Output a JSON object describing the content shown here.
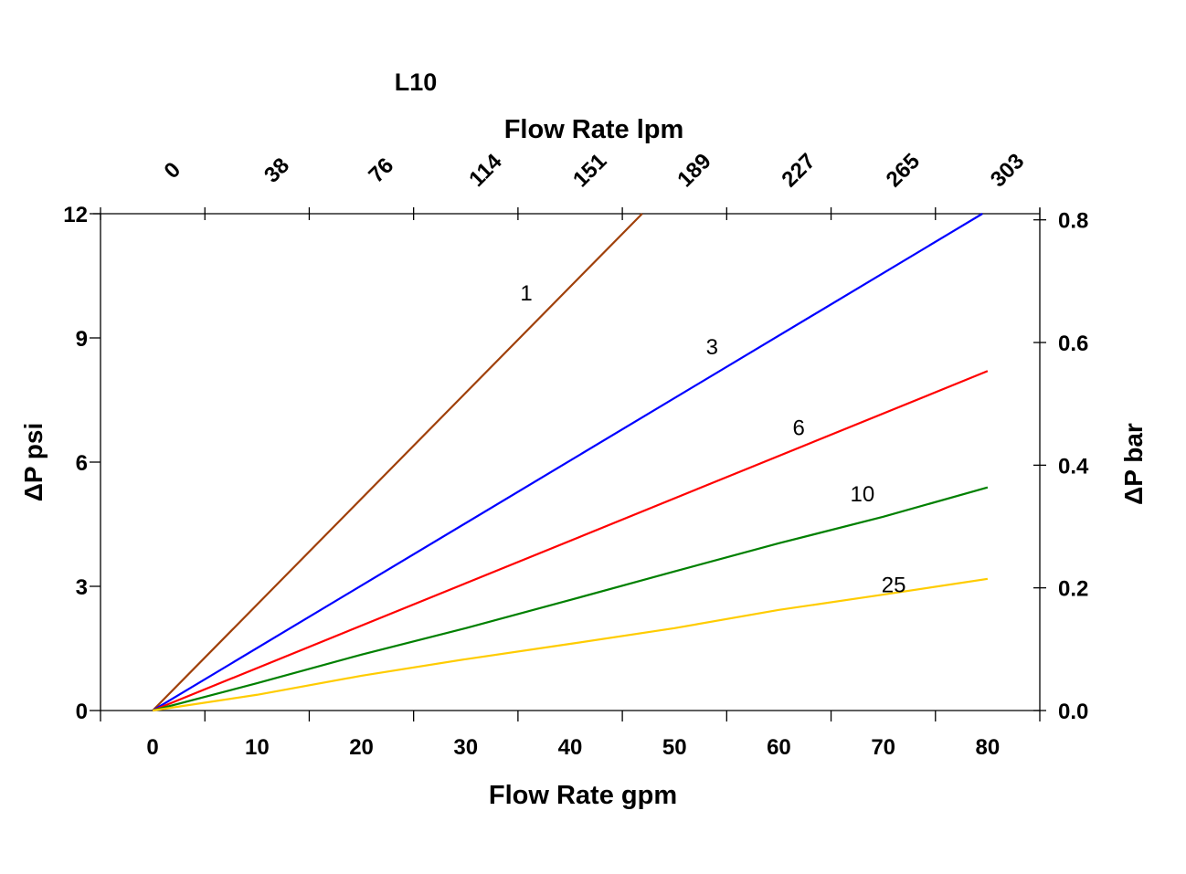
{
  "chart_data": {
    "type": "line",
    "title": "L10",
    "xlabel": "Flow Rate gpm",
    "x2label": "Flow Rate lpm",
    "ylabel": "ΔP psi",
    "y2label": "ΔP bar",
    "xlim": [
      -5,
      85
    ],
    "ylim": [
      0,
      12
    ],
    "y2lim": [
      0,
      0.81
    ],
    "grid": false,
    "x_ticks": [
      0,
      10,
      20,
      30,
      40,
      50,
      60,
      70,
      80
    ],
    "x2_tick_labels": [
      "0",
      "38",
      "76",
      "114",
      "151",
      "189",
      "227",
      "265",
      "303"
    ],
    "y_ticks": [
      0,
      3,
      6,
      9,
      12
    ],
    "y2_ticks": [
      "0.0",
      "0.2",
      "0.4",
      "0.6",
      "0.8"
    ],
    "series": [
      {
        "label": "1",
        "color": "#a0400a",
        "x": [
          0,
          46.9
        ],
        "y": [
          0,
          12
        ],
        "label_pos": [
          35.8,
          10.1
        ]
      },
      {
        "label": "3",
        "color": "#0000ff",
        "x": [
          0,
          79.5
        ],
        "y": [
          0,
          12
        ],
        "label_pos": [
          53.6,
          8.8
        ]
      },
      {
        "label": "6",
        "color": "#ff0000",
        "x": [
          0,
          80
        ],
        "y": [
          0,
          8.2
        ],
        "label_pos": [
          61.9,
          6.85
        ]
      },
      {
        "label": "10",
        "color": "#008000",
        "x": [
          0,
          10,
          20,
          30,
          40,
          50,
          60,
          70,
          80
        ],
        "y": [
          0,
          0.66,
          1.35,
          1.99,
          2.67,
          3.36,
          4.04,
          4.68,
          5.39
        ],
        "label_pos": [
          68,
          5.25
        ]
      },
      {
        "label": "25",
        "color": "#ffcc00",
        "x": [
          0,
          10,
          20,
          30,
          40,
          50,
          60,
          70,
          80
        ],
        "y": [
          0,
          0.38,
          0.84,
          1.24,
          1.61,
          1.99,
          2.43,
          2.8,
          3.18
        ],
        "label_pos": [
          71,
          3.05
        ]
      }
    ]
  }
}
